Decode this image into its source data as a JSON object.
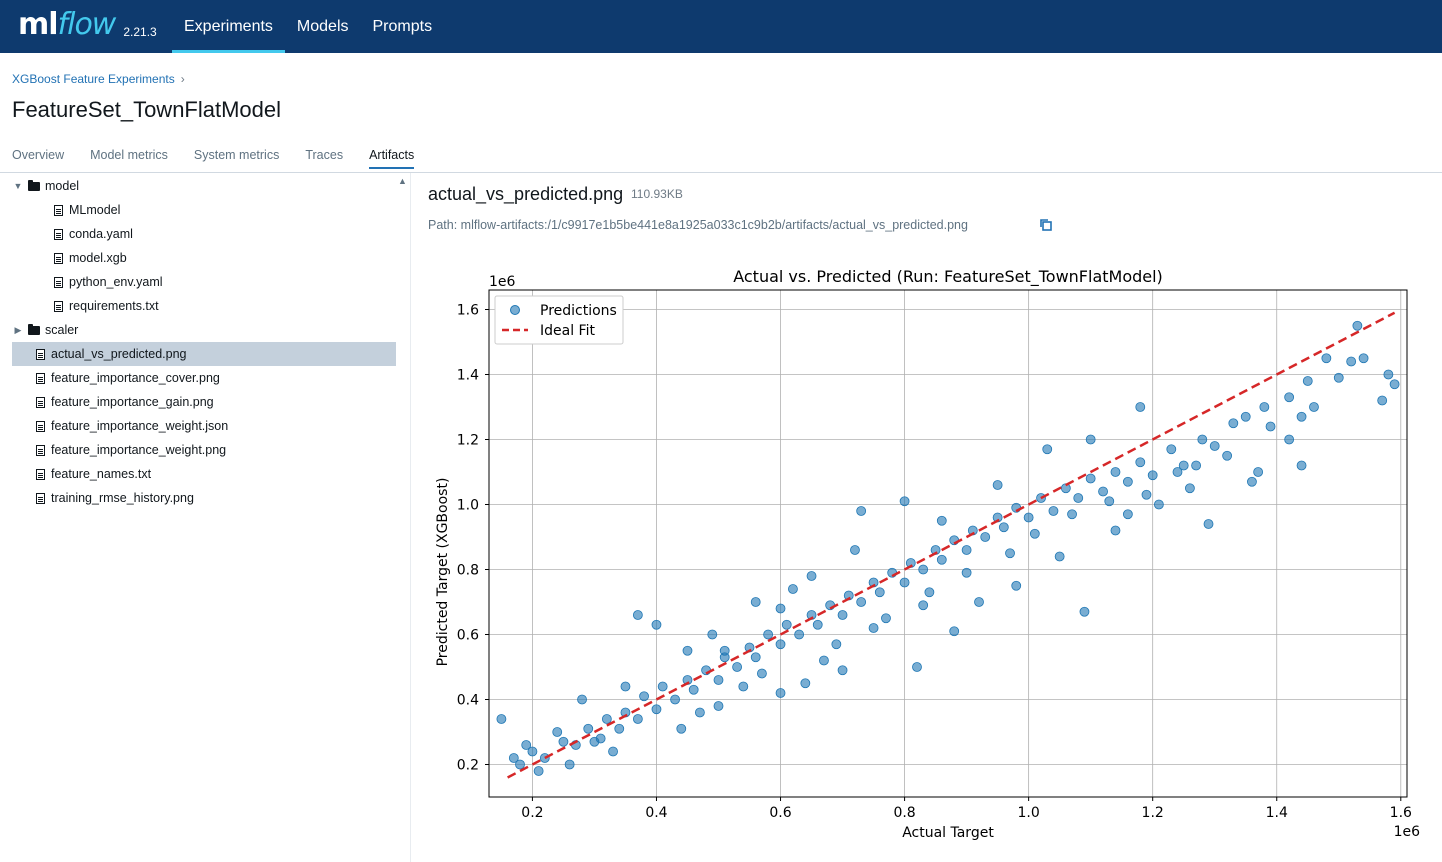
{
  "header": {
    "logo_ml": "ml",
    "logo_flow": "flow",
    "version": "2.21.3",
    "nav": [
      "Experiments",
      "Models",
      "Prompts"
    ]
  },
  "breadcrumb": {
    "experiment": "XGBoost Feature Experiments",
    "separator": "›"
  },
  "run_title": "FeatureSet_TownFlatModel",
  "tabs": [
    "Overview",
    "Model metrics",
    "System metrics",
    "Traces",
    "Artifacts"
  ],
  "active_tab": "Artifacts",
  "tree": {
    "folders": {
      "model": {
        "label": "model",
        "expanded": true,
        "files": [
          "MLmodel",
          "conda.yaml",
          "model.xgb",
          "python_env.yaml",
          "requirements.txt"
        ]
      },
      "scaler": {
        "label": "scaler",
        "expanded": false
      }
    },
    "files": [
      "actual_vs_predicted.png",
      "feature_importance_cover.png",
      "feature_importance_gain.png",
      "feature_importance_weight.json",
      "feature_importance_weight.png",
      "feature_names.txt",
      "training_rmse_history.png"
    ],
    "selected": "actual_vs_predicted.png"
  },
  "artifact": {
    "name": "actual_vs_predicted.png",
    "size": "110.93KB",
    "path": "Path: mlflow-artifacts:/1/c9917e1b5be441e8a1925a033c1c9b2b/artifacts/actual_vs_predicted.png"
  },
  "colors": {
    "topbar": "#0e3a6e",
    "accent": "#43c9ed",
    "link": "#2272b4",
    "points": "#1f77b4",
    "ideal_line": "#d62728"
  },
  "chart_data": {
    "type": "scatter",
    "title": "Actual vs. Predicted (Run: FeatureSet_TownFlatModel)",
    "xlabel": "Actual Target",
    "ylabel": "Predicted Target (XGBoost)",
    "x_offset_label": "1e6",
    "y_offset_label": "1e6",
    "xlim": [
      0.13,
      1.61
    ],
    "ylim": [
      0.1,
      1.66
    ],
    "xticks": [
      0.2,
      0.4,
      0.6,
      0.8,
      1.0,
      1.2,
      1.4,
      1.6
    ],
    "xtick_labels": [
      "0.2",
      "0.4",
      "0.6",
      "0.8",
      "1.0",
      "1.2",
      "1.4",
      "1.6"
    ],
    "yticks": [
      0.2,
      0.4,
      0.6,
      0.8,
      1.0,
      1.2,
      1.4,
      1.6
    ],
    "ytick_labels": [
      "0.2",
      "0.4",
      "0.6",
      "0.8",
      "1.0",
      "1.2",
      "1.4",
      "1.6"
    ],
    "grid": true,
    "legend_position": "top-left",
    "series": [
      {
        "name": "Predictions",
        "kind": "scatter",
        "points": [
          [
            0.15,
            0.34
          ],
          [
            0.17,
            0.22
          ],
          [
            0.18,
            0.2
          ],
          [
            0.2,
            0.24
          ],
          [
            0.22,
            0.22
          ],
          [
            0.25,
            0.27
          ],
          [
            0.27,
            0.26
          ],
          [
            0.29,
            0.31
          ],
          [
            0.3,
            0.27
          ],
          [
            0.32,
            0.34
          ],
          [
            0.34,
            0.31
          ],
          [
            0.35,
            0.36
          ],
          [
            0.37,
            0.34
          ],
          [
            0.38,
            0.41
          ],
          [
            0.4,
            0.37
          ],
          [
            0.41,
            0.44
          ],
          [
            0.43,
            0.4
          ],
          [
            0.45,
            0.46
          ],
          [
            0.46,
            0.43
          ],
          [
            0.48,
            0.49
          ],
          [
            0.5,
            0.46
          ],
          [
            0.51,
            0.53
          ],
          [
            0.53,
            0.5
          ],
          [
            0.55,
            0.56
          ],
          [
            0.56,
            0.53
          ],
          [
            0.58,
            0.6
          ],
          [
            0.6,
            0.57
          ],
          [
            0.61,
            0.63
          ],
          [
            0.63,
            0.6
          ],
          [
            0.65,
            0.66
          ],
          [
            0.66,
            0.63
          ],
          [
            0.68,
            0.69
          ],
          [
            0.7,
            0.66
          ],
          [
            0.71,
            0.72
          ],
          [
            0.73,
            0.7
          ],
          [
            0.75,
            0.76
          ],
          [
            0.76,
            0.73
          ],
          [
            0.78,
            0.79
          ],
          [
            0.8,
            0.76
          ],
          [
            0.81,
            0.82
          ],
          [
            0.83,
            0.8
          ],
          [
            0.85,
            0.86
          ],
          [
            0.86,
            0.83
          ],
          [
            0.88,
            0.89
          ],
          [
            0.9,
            0.86
          ],
          [
            0.91,
            0.92
          ],
          [
            0.93,
            0.9
          ],
          [
            0.95,
            0.96
          ],
          [
            0.96,
            0.93
          ],
          [
            0.98,
            0.99
          ],
          [
            1.0,
            0.96
          ],
          [
            1.02,
            1.02
          ],
          [
            1.04,
            0.98
          ],
          [
            1.06,
            1.05
          ],
          [
            1.08,
            1.02
          ],
          [
            1.1,
            1.08
          ],
          [
            1.12,
            1.04
          ],
          [
            1.14,
            1.1
          ],
          [
            1.16,
            1.07
          ],
          [
            1.18,
            1.13
          ],
          [
            1.2,
            1.09
          ],
          [
            1.23,
            1.17
          ],
          [
            1.25,
            1.12
          ],
          [
            1.28,
            1.2
          ],
          [
            1.3,
            1.18
          ],
          [
            1.33,
            1.25
          ],
          [
            1.35,
            1.27
          ],
          [
            1.38,
            1.3
          ],
          [
            1.42,
            1.33
          ],
          [
            1.45,
            1.38
          ],
          [
            1.48,
            1.45
          ],
          [
            1.5,
            1.39
          ],
          [
            1.53,
            1.55
          ],
          [
            1.54,
            1.45
          ],
          [
            1.57,
            1.32
          ],
          [
            1.58,
            1.4
          ],
          [
            1.59,
            1.37
          ],
          [
            0.37,
            0.66
          ],
          [
            0.4,
            0.63
          ],
          [
            0.64,
            0.45
          ],
          [
            0.82,
            0.5
          ],
          [
            1.09,
            0.67
          ],
          [
            0.73,
            0.98
          ],
          [
            0.8,
            1.01
          ],
          [
            0.95,
            1.06
          ],
          [
            1.03,
            1.17
          ],
          [
            1.1,
            1.2
          ],
          [
            1.18,
            1.3
          ],
          [
            0.56,
            0.7
          ],
          [
            0.51,
            0.55
          ],
          [
            0.5,
            0.38
          ],
          [
            0.28,
            0.4
          ],
          [
            0.33,
            0.24
          ],
          [
            0.6,
            0.42
          ],
          [
            0.7,
            0.49
          ],
          [
            0.88,
            0.61
          ],
          [
            0.92,
            0.7
          ],
          [
            0.98,
            0.75
          ],
          [
            1.05,
            0.84
          ],
          [
            1.14,
            0.92
          ],
          [
            1.21,
            1.0
          ],
          [
            1.29,
            0.94
          ],
          [
            1.37,
            1.1
          ],
          [
            1.42,
            1.2
          ],
          [
            1.46,
            1.3
          ],
          [
            1.44,
            1.12
          ],
          [
            1.36,
            1.07
          ],
          [
            1.24,
            1.1
          ],
          [
            0.65,
            0.78
          ],
          [
            0.72,
            0.86
          ],
          [
            0.6,
            0.68
          ],
          [
            0.45,
            0.55
          ],
          [
            0.24,
            0.3
          ],
          [
            0.21,
            0.18
          ],
          [
            0.19,
            0.26
          ],
          [
            0.26,
            0.2
          ],
          [
            0.44,
            0.31
          ],
          [
            0.54,
            0.44
          ],
          [
            0.69,
            0.57
          ],
          [
            0.77,
            0.65
          ],
          [
            0.84,
            0.73
          ],
          [
            0.9,
            0.79
          ],
          [
            0.97,
            0.85
          ],
          [
            1.01,
            0.91
          ],
          [
            1.07,
            0.97
          ],
          [
            1.13,
            1.01
          ],
          [
            1.19,
            1.03
          ],
          [
            1.27,
            1.12
          ],
          [
            1.32,
            1.15
          ],
          [
            1.39,
            1.24
          ],
          [
            1.44,
            1.27
          ],
          [
            1.52,
            1.44
          ],
          [
            1.26,
            1.05
          ],
          [
            1.16,
            0.97
          ],
          [
            0.86,
            0.95
          ],
          [
            0.62,
            0.74
          ],
          [
            0.49,
            0.6
          ],
          [
            0.35,
            0.44
          ],
          [
            0.31,
            0.28
          ],
          [
            0.47,
            0.36
          ],
          [
            0.57,
            0.48
          ],
          [
            0.67,
            0.52
          ],
          [
            0.75,
            0.62
          ],
          [
            0.83,
            0.69
          ]
        ]
      },
      {
        "name": "Ideal Fit",
        "kind": "line",
        "style": "dashed",
        "x": [
          0.16,
          1.59
        ],
        "y": [
          0.16,
          1.59
        ]
      }
    ]
  }
}
